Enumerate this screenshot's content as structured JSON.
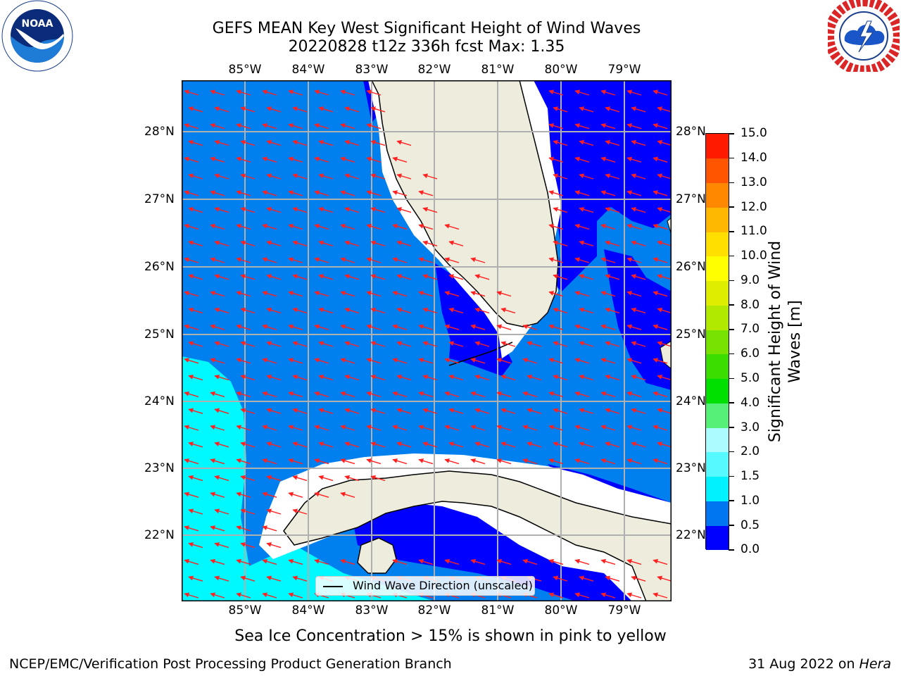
{
  "title": {
    "line1": "GEFS MEAN Key West Significant Height of Wind Waves",
    "line2": "20220828 t12z 336h fcst   Max: 1.35"
  },
  "map": {
    "lon_labels": [
      "85°W",
      "84°W",
      "83°W",
      "82°W",
      "81°W",
      "80°W",
      "79°W"
    ],
    "lat_labels": [
      "28°N",
      "27°N",
      "26°N",
      "25°N",
      "24°N",
      "23°N",
      "22°N"
    ],
    "legend_label": "Wind Wave Direction (unscaled)"
  },
  "colorbar": {
    "label_line1": "Significant Height of Wind",
    "label_line2": "Waves [m]",
    "ticks": [
      "0.0",
      "0.5",
      "1.0",
      "1.5",
      "2.0",
      "3.0",
      "4.0",
      "5.0",
      "6.0",
      "7.0",
      "8.0",
      "9.0",
      "10.0",
      "11.0",
      "12.0",
      "13.0",
      "14.0",
      "15.0"
    ],
    "colors": [
      "#0000ff",
      "#0077f0",
      "#00f2ff",
      "#55f9ff",
      "#aafcff",
      "#55f077",
      "#00e000",
      "#3bdc00",
      "#77e200",
      "#b1ea00",
      "#dfee00",
      "#ffff00",
      "#ffdf00",
      "#ffb800",
      "#ff8800",
      "#ff5500",
      "#ff1a00"
    ]
  },
  "colors": {
    "land": "#eeecdc",
    "deep_blue": "#0000ff",
    "mid_blue": "#0080ef",
    "cyan": "#00f8ff",
    "arrow": "#ff2020",
    "grid": "#b0b0b0"
  },
  "logos": {
    "left": "NOAA",
    "right_ring": "NATIONAL WEATHER SERVICE"
  },
  "note": "Sea Ice Concentration > 15% is shown in pink to yellow",
  "footer": {
    "left": "NCEP/EMC/Verification Post Processing Product Generation Branch",
    "right_prefix": "31 Aug 2022 on ",
    "right_host": "Hera"
  }
}
